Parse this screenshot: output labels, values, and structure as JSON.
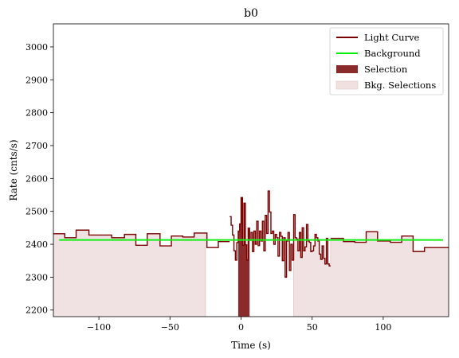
{
  "chart_data": {
    "type": "line",
    "title": "b0",
    "xlabel": "Time (s)",
    "ylabel": "Rate (cnts/s)",
    "xlim": [
      -132,
      146
    ],
    "ylim": [
      2180,
      3070
    ],
    "xticks": [
      -100,
      -50,
      0,
      50,
      100
    ],
    "xtick_labels": [
      "−100",
      "−50",
      "0",
      "50",
      "100"
    ],
    "yticks": [
      2200,
      2300,
      2400,
      2500,
      2600,
      2700,
      2800,
      2900,
      3000
    ],
    "ytick_labels": [
      "2200",
      "2300",
      "2400",
      "2500",
      "2600",
      "2700",
      "2800",
      "2900",
      "3000"
    ],
    "grid": false,
    "legend_position": "top-right",
    "legend": [
      {
        "label": "Light Curve",
        "kind": "line",
        "color": "#7a0000"
      },
      {
        "label": "Background",
        "kind": "line",
        "color": "#00ee00"
      },
      {
        "label": "Selection",
        "kind": "patch",
        "color": "#8b2a2a"
      },
      {
        "label": "Bkg. Selections",
        "kind": "patch",
        "color": "#f0e0e0"
      }
    ],
    "colors": {
      "light_curve": "#7a0000",
      "background": "#11ee11",
      "selection": "#8b2a2a",
      "bkg_selection": "#f0e2e2",
      "bkg_selection_edge": "#e2c4c4"
    },
    "background_line": {
      "x": [
        -128,
        142
      ],
      "y": [
        2413,
        2413
      ]
    },
    "selection_interval": [
      -2,
      6
    ],
    "bkg_selection_intervals": [
      [
        -132,
        -25
      ],
      [
        37,
        146
      ]
    ],
    "light_curve": {
      "coarse_left": {
        "edges": [
          -132,
          -124,
          -116,
          -107,
          -99,
          -91,
          -82,
          -74,
          -66,
          -57,
          -49,
          -41,
          -33,
          -24,
          -16,
          -8
        ],
        "values": [
          2432,
          2420,
          2443,
          2428,
          2428,
          2420,
          2430,
          2397,
          2432,
          2395,
          2425,
          2422,
          2434,
          2390,
          2408
        ]
      },
      "fine_mid": {
        "edges": [
          -8,
          -7,
          -6,
          -5,
          -4,
          -3,
          -2,
          -1,
          0,
          1,
          2,
          3,
          4,
          5,
          6,
          7,
          8,
          9,
          10,
          11,
          12,
          13,
          14,
          15,
          16,
          17,
          18,
          19,
          20,
          21,
          22,
          23,
          24,
          25,
          26,
          27,
          28,
          29,
          30,
          31,
          32,
          33,
          34,
          35,
          36,
          37,
          38,
          39,
          40,
          41,
          42,
          43,
          44,
          45,
          46,
          47,
          48,
          49,
          50,
          51,
          52,
          53,
          54,
          55,
          56,
          57,
          58,
          59,
          60,
          61,
          62,
          63
        ],
        "values": [
          2484,
          2458,
          2428,
          2380,
          2352,
          2405,
          2440,
          2462,
          2542,
          2397,
          2525,
          2398,
          2352,
          2449,
          2412,
          2436,
          2378,
          2440,
          2400,
          2470,
          2396,
          2440,
          2410,
          2470,
          2380,
          2488,
          2433,
          2562,
          2498,
          2433,
          2440,
          2400,
          2430,
          2420,
          2364,
          2436,
          2424,
          2350,
          2420,
          2300,
          2410,
          2436,
          2320,
          2400,
          2352,
          2490,
          2420,
          2416,
          2380,
          2436,
          2360,
          2450,
          2380,
          2392,
          2460,
          2410,
          2406,
          2378,
          2380,
          2395,
          2430,
          2420,
          2410,
          2370,
          2354,
          2395,
          2357,
          2340,
          2418,
          2340,
          2334
        ]
      },
      "coarse_right": {
        "edges": [
          63,
          72,
          80,
          88,
          96,
          105,
          113,
          121,
          129,
          138,
          146
        ],
        "values": [
          2418,
          2408,
          2406,
          2438,
          2410,
          2406,
          2425,
          2378,
          2390,
          2390
        ]
      }
    }
  }
}
